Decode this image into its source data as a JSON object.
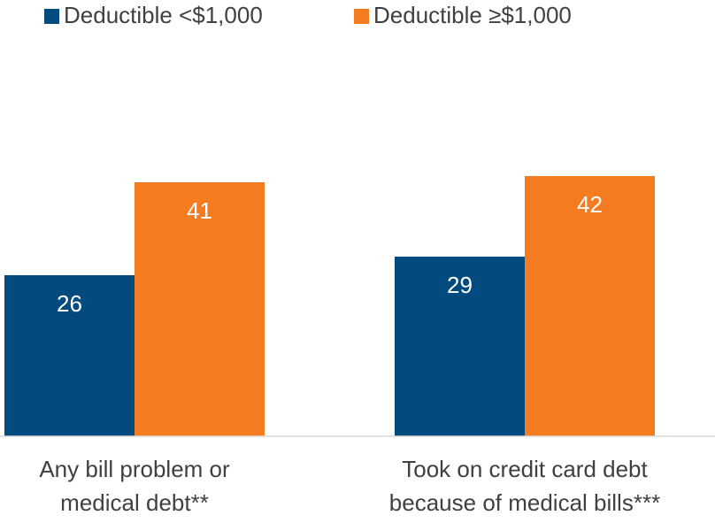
{
  "chart_data": {
    "type": "bar",
    "categories": [
      "Any bill problem or medical debt**",
      "Took on credit card debt because of medical bills***"
    ],
    "series": [
      {
        "name": "Deductible <$1,000",
        "color": "#034a7e",
        "values": [
          26,
          29
        ]
      },
      {
        "name": "Deductible ≥$1,000",
        "color": "#f47b20",
        "values": [
          41,
          42
        ]
      }
    ],
    "ylim": [
      0,
      50
    ],
    "grid": false,
    "legend": "top"
  }
}
